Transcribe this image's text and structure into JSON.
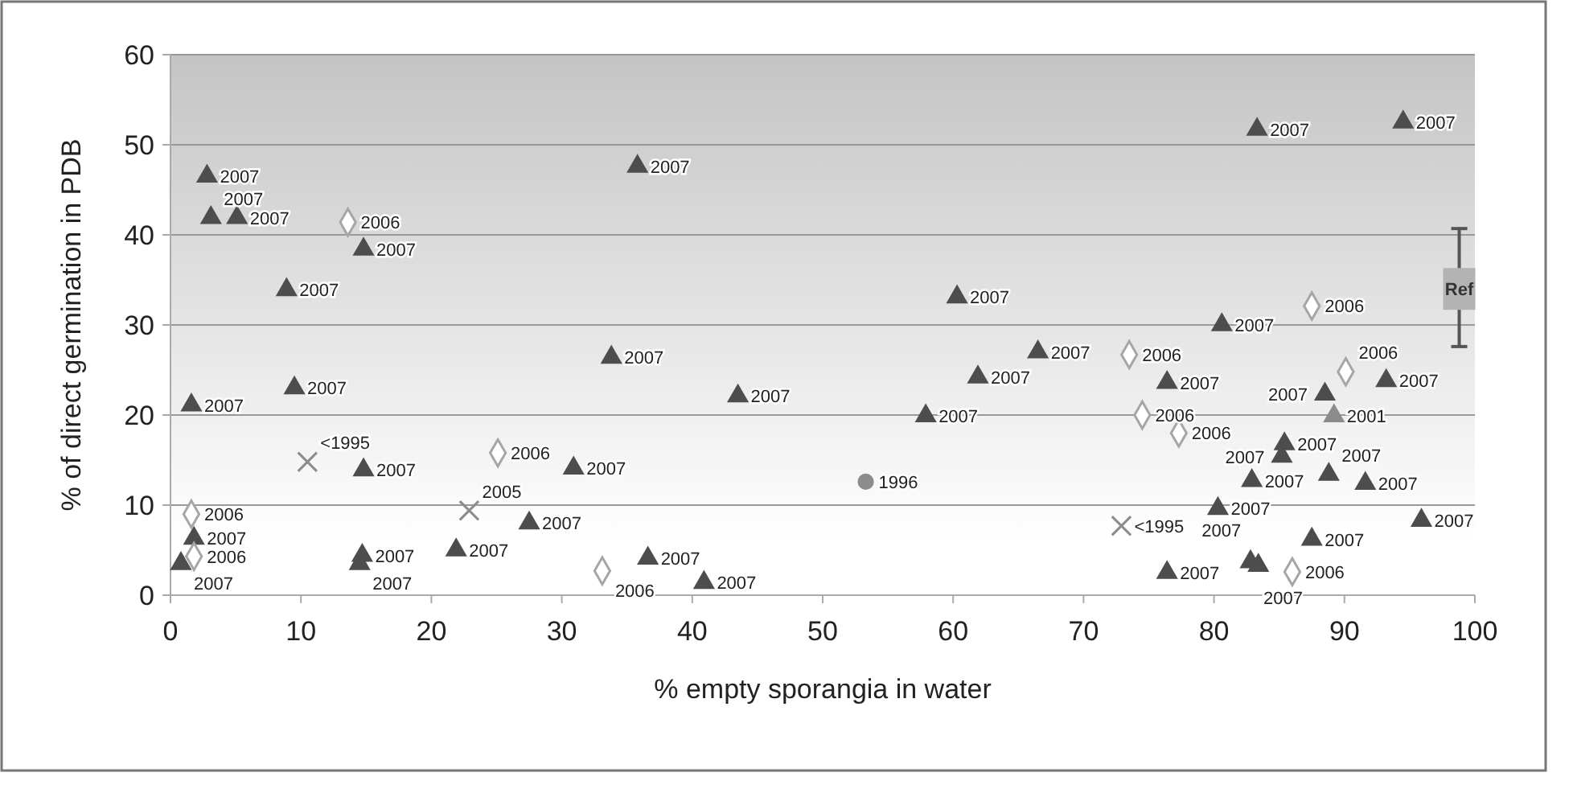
{
  "chart_data": {
    "type": "scatter",
    "xlabel": "% empty sporangia in water",
    "ylabel": "% of direct germination in PDB",
    "xlim": [
      0,
      100
    ],
    "ylim": [
      0,
      60
    ],
    "xticks": [
      0,
      10,
      20,
      30,
      40,
      50,
      60,
      70,
      80,
      90,
      100
    ],
    "yticks": [
      0,
      10,
      20,
      30,
      40,
      50,
      60
    ],
    "grid": "y",
    "legend": false,
    "series": [
      {
        "name": "2007",
        "color": "#4d4d4d",
        "marker": "triangle",
        "x": [
          2.8,
          3.1,
          5.1,
          14.8,
          8.9,
          1.6,
          9.5,
          14.8,
          30.9,
          27.5,
          21.9,
          14.7,
          14.5,
          1.8,
          0.8,
          35.8,
          33.8,
          43.5,
          60.3,
          66.5,
          61.9,
          57.9,
          36.6,
          40.9,
          83.3,
          94.5,
          80.6,
          76.4,
          93.2,
          88.5,
          85.4,
          85.2,
          88.8,
          91.6,
          82.9,
          80.3,
          95.9,
          87.5,
          76.4,
          82.8,
          83.4
        ],
        "values": [
          46.5,
          41.9,
          41.9,
          38.4,
          33.9,
          21.1,
          23.0,
          13.9,
          14.1,
          8.0,
          5.0,
          4.4,
          3.5,
          6.3,
          3.5,
          47.6,
          26.4,
          22.1,
          33.1,
          27.0,
          24.2,
          19.9,
          4.1,
          1.4,
          51.7,
          52.5,
          30.0,
          23.6,
          23.8,
          22.3,
          16.8,
          15.4,
          13.4,
          12.4,
          12.7,
          9.6,
          8.3,
          6.2,
          2.5,
          3.7,
          3.3
        ]
      },
      {
        "name": "2006",
        "color": "#a6a6a6",
        "marker": "diamond",
        "x": [
          13.6,
          25.1,
          1.6,
          1.8,
          33.1,
          87.5,
          73.5,
          90.1,
          74.5,
          77.3,
          86.0
        ],
        "values": [
          41.4,
          15.8,
          9.0,
          4.3,
          2.7,
          32.1,
          26.7,
          24.8,
          20.0,
          18.0,
          2.6
        ]
      },
      {
        "name": "<1995",
        "color": "#8c8c8c",
        "marker": "cross",
        "x": [
          10.5,
          72.9
        ],
        "values": [
          14.8,
          7.7
        ]
      },
      {
        "name": "2005",
        "color": "#8c8c8c",
        "marker": "cross",
        "x": [
          22.9
        ],
        "values": [
          9.4
        ]
      },
      {
        "name": "1996",
        "color": "#8c8c8c",
        "marker": "circle",
        "x": [
          53.3
        ],
        "values": [
          12.6
        ]
      },
      {
        "name": "2001",
        "color": "#8c8c8c",
        "marker": "triangle",
        "x": [
          89.2
        ],
        "values": [
          19.9
        ]
      },
      {
        "name": "Ref",
        "color": "#b3b3b3",
        "marker": "square",
        "x": [
          98.8
        ],
        "values": [
          34
        ],
        "errors": [
          [
            27.6,
            40.7
          ]
        ]
      }
    ]
  }
}
